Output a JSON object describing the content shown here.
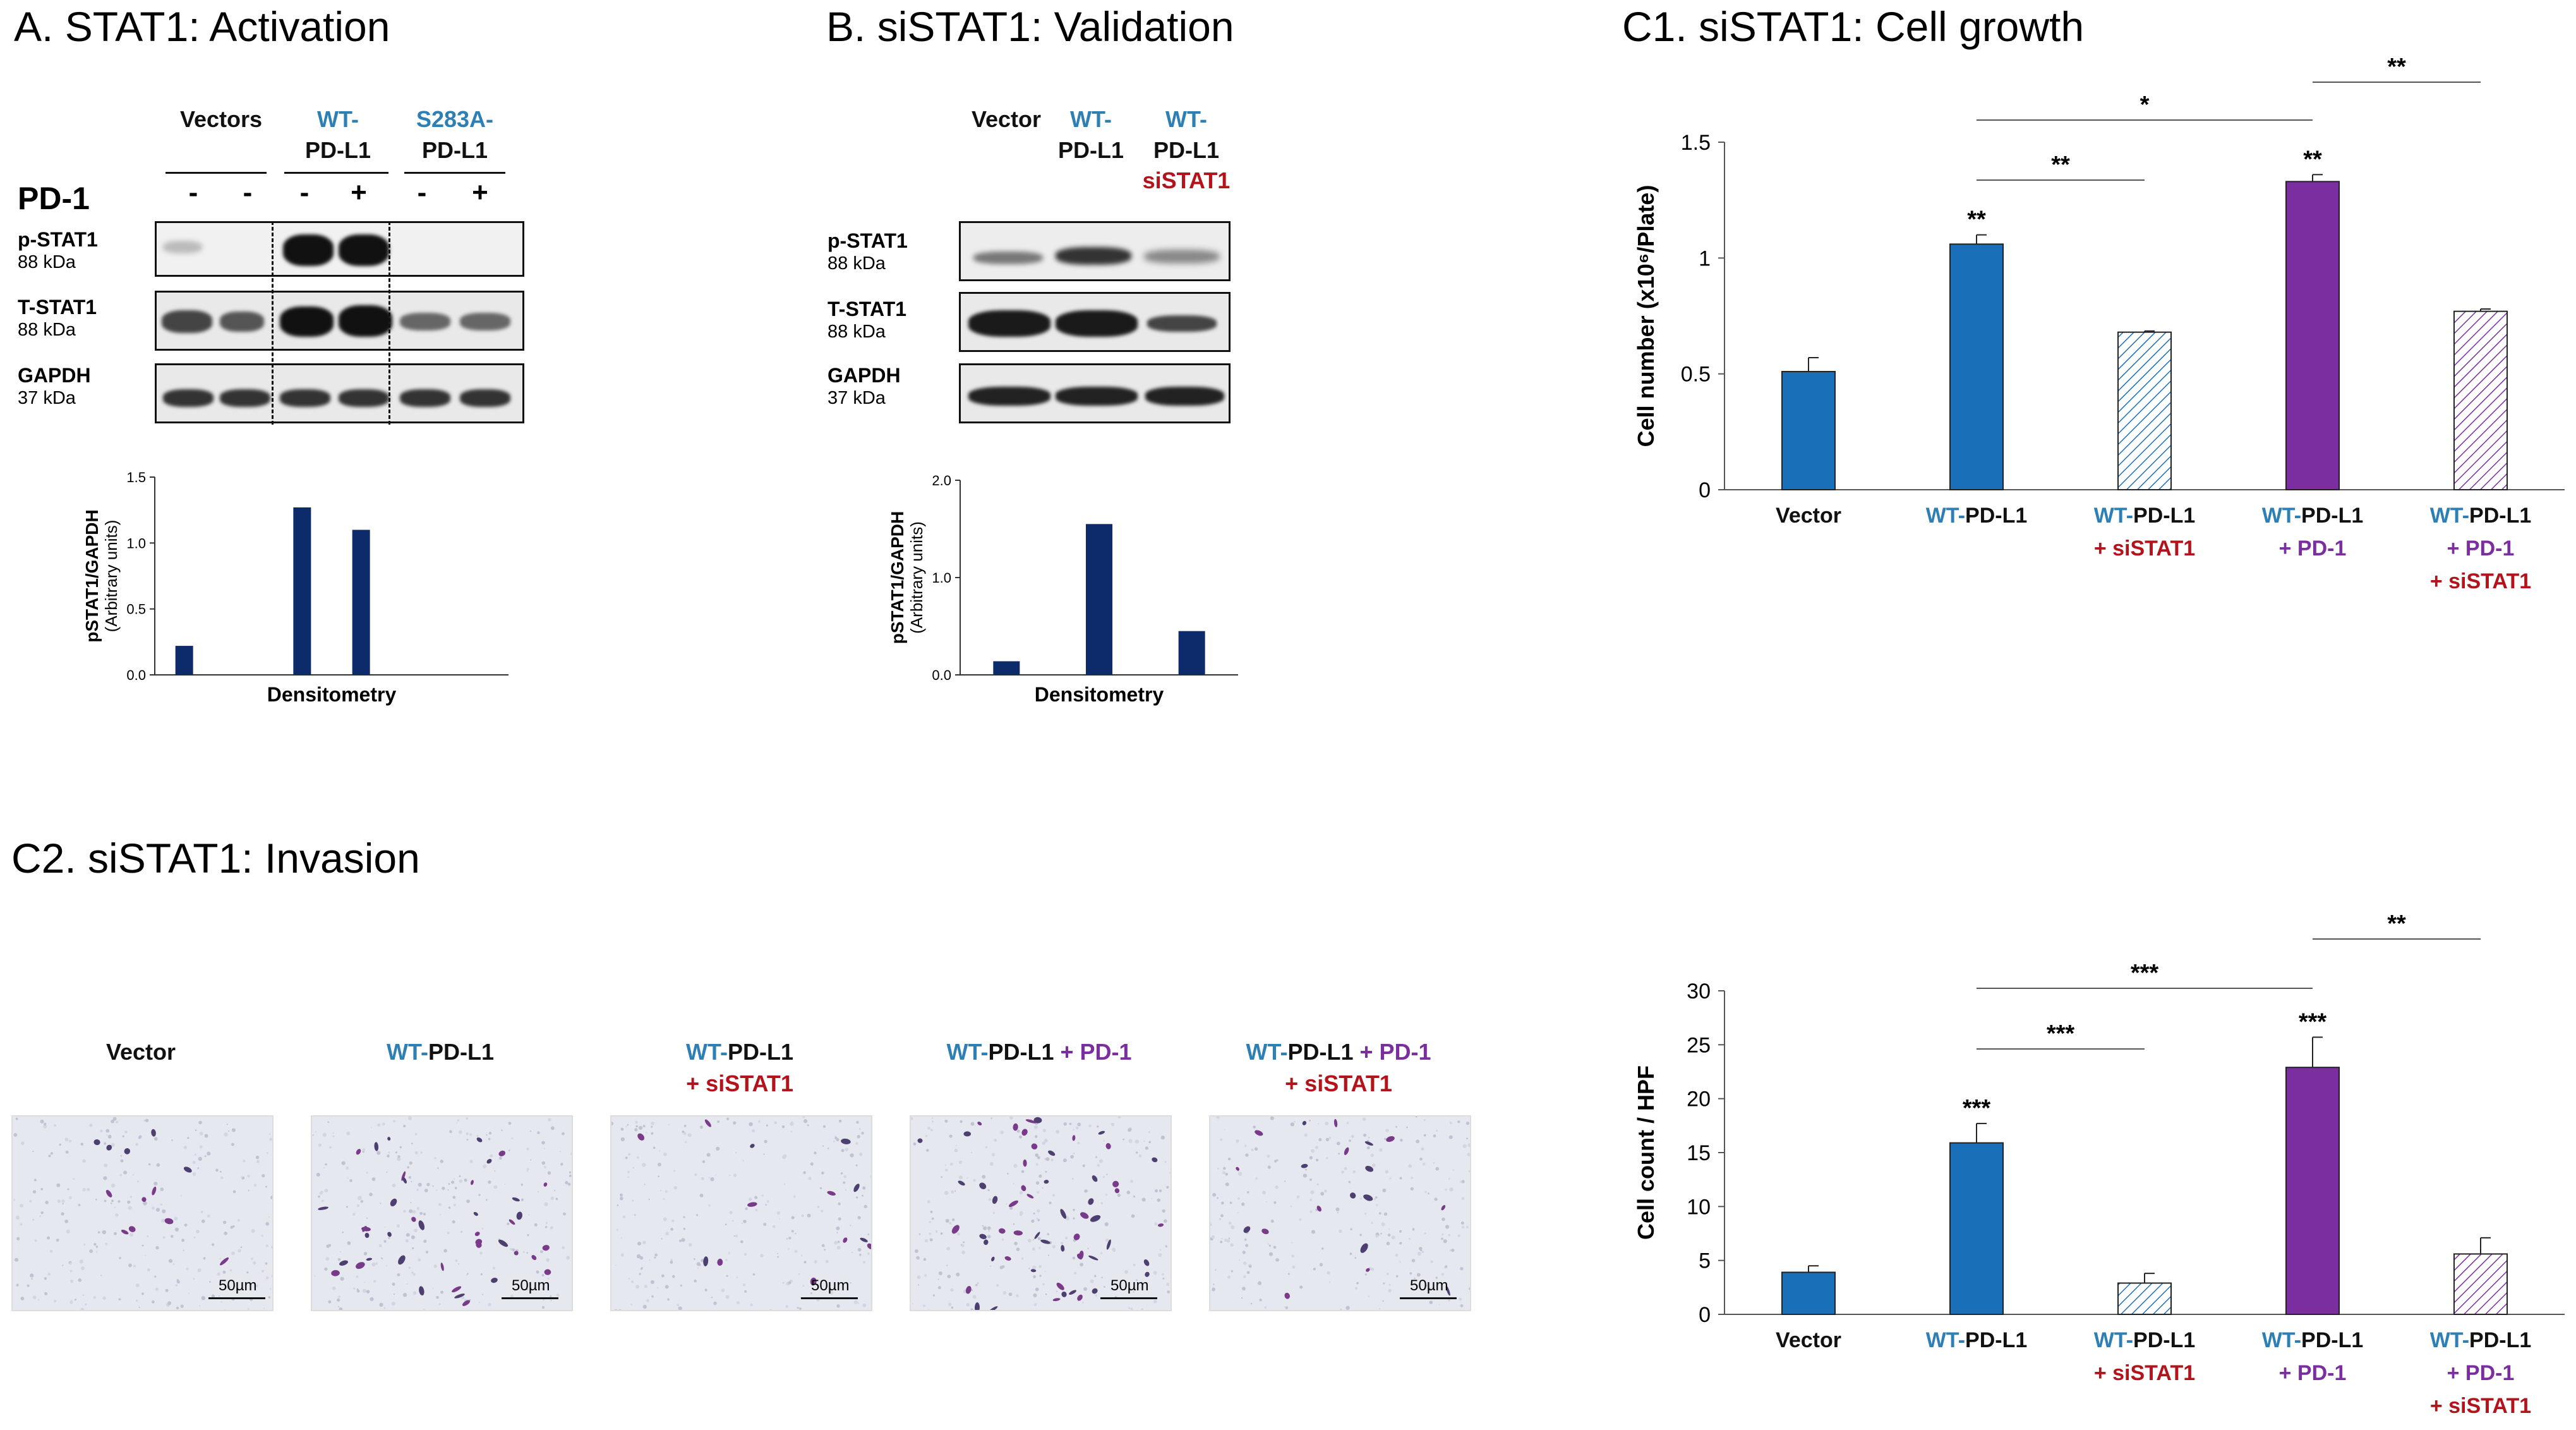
{
  "panels": {
    "a": {
      "title": "A. STAT1: Activation",
      "lane_headers": [
        {
          "line1": "Vectors",
          "line2": ""
        },
        {
          "line1": "WT-",
          "line2": "PD-L1"
        },
        {
          "line1": "S283A-",
          "line2": "PD-L1"
        }
      ],
      "pd1_label": "PD-1",
      "pd1_signs": [
        "-",
        "-",
        "-",
        "+",
        "-",
        "+"
      ],
      "rows": [
        {
          "name": "p-STAT1",
          "kda": "88 kDa"
        },
        {
          "name": "T-STAT1",
          "kda": "88 kDa"
        },
        {
          "name": "GAPDH",
          "kda": "37 kDa"
        }
      ]
    },
    "b": {
      "title": "B. siSTAT1: Validation",
      "lane_headers": [
        {
          "line1": "Vector",
          "line2": "",
          "line3": ""
        },
        {
          "line1": "WT-",
          "line2": "PD-L1",
          "line3": ""
        },
        {
          "line1": "WT-",
          "line2": "PD-L1",
          "line3": "siSTAT1"
        }
      ],
      "rows": [
        {
          "name": "p-STAT1",
          "kda": "88 kDa"
        },
        {
          "name": "T-STAT1",
          "kda": "88 kDa"
        },
        {
          "name": "GAPDH",
          "kda": "37 kDa"
        }
      ]
    },
    "c1": {
      "title": "C1. siSTAT1: Cell growth"
    },
    "c2": {
      "title": "C2. siSTAT1: Invasion",
      "images": [
        {
          "part1": "Vector",
          "part2": "",
          "part3": ""
        },
        {
          "part1": "WT-",
          "part2": "PD-L1",
          "part3": ""
        },
        {
          "part1": "WT-",
          "part2": "PD-L1",
          "part3": "+ siSTAT1"
        },
        {
          "part1": "WT-",
          "part2": "PD-L1",
          "part3": "+ PD-1"
        },
        {
          "part1": "WT-",
          "part2": "PD-L1",
          "part3": "+ PD-1",
          "part4": "+ siSTAT1"
        }
      ],
      "scale_label": "50µm"
    }
  },
  "colors": {
    "blue": "#1a70b8",
    "purple": "#7a2ea0",
    "navy": "#0d2a6b",
    "red": "#b3131b",
    "label_blue": "#2e7fb3"
  },
  "chart_data": [
    {
      "id": "a-densitometry",
      "type": "bar",
      "categories": [
        "Vector",
        "Vector + PD-1",
        "WT-PD-L1",
        "WT-PD-L1 + PD-1",
        "S283A-PD-L1",
        "S283A-PD-L1 + PD-1"
      ],
      "values": [
        0.22,
        0,
        1.27,
        1.1,
        0,
        0
      ],
      "xlabel": "Densitometry",
      "ylabel": "pSTAT1/GAPDH",
      "ylabel2": "(Arbitrary units)",
      "yticks": [
        "0.0",
        "0.5",
        "1.0",
        "1.5"
      ],
      "ylim": [
        0,
        1.5
      ]
    },
    {
      "id": "b-densitometry",
      "type": "bar",
      "categories": [
        "Vector",
        "WT-PD-L1",
        "WT-PD-L1 siSTAT1"
      ],
      "values": [
        0.14,
        1.55,
        0.45
      ],
      "xlabel": "Densitometry",
      "ylabel": "pSTAT1/GAPDH",
      "ylabel2": "(Arbitrary units)",
      "yticks": [
        "0.0",
        "1.0",
        "2.0"
      ],
      "ylim": [
        0,
        2.0
      ]
    },
    {
      "id": "c1-growth",
      "type": "bar",
      "ylabel": "Cell number (x10⁶/Plate)",
      "yticks": [
        "0",
        "0.5",
        "1",
        "1.5"
      ],
      "ylim": [
        0,
        1.5
      ],
      "groups": [
        {
          "label_parts": [
            [
              "Vector",
              "dark"
            ]
          ],
          "value": 0.51,
          "error": 0.06,
          "fill": "blue",
          "hatched": false,
          "sig": ""
        },
        {
          "label_parts": [
            [
              "WT-",
              "blue"
            ],
            [
              "PD-L1",
              "dark"
            ]
          ],
          "value": 1.06,
          "error": 0.04,
          "fill": "blue",
          "hatched": false,
          "sig": "**"
        },
        {
          "label_parts": [
            [
              "WT-",
              "blue"
            ],
            [
              "PD-L1",
              "dark"
            ],
            [
              "+ siSTAT1",
              "red"
            ]
          ],
          "value": 0.68,
          "error": 0.005,
          "fill": "blue",
          "hatched": true,
          "sig": ""
        },
        {
          "label_parts": [
            [
              "WT-",
              "blue"
            ],
            [
              "PD-L1",
              "dark"
            ],
            [
              "+ PD-1",
              "purple"
            ]
          ],
          "value": 1.33,
          "error": 0.03,
          "fill": "purple",
          "hatched": false,
          "sig": "**"
        },
        {
          "label_parts": [
            [
              "WT-",
              "blue"
            ],
            [
              "PD-L1",
              "dark"
            ],
            [
              "+ PD-1",
              "purple"
            ],
            [
              "+ siSTAT1",
              "red"
            ]
          ],
          "value": 0.77,
          "error": 0.01,
          "fill": "purple",
          "hatched": true,
          "sig": ""
        }
      ],
      "brackets": [
        {
          "from": 1,
          "to": 2,
          "label": "**",
          "level": 1
        },
        {
          "from": 1,
          "to": 3,
          "label": "*",
          "level": 3
        },
        {
          "from": 3,
          "to": 4,
          "label": "**",
          "level": 2
        }
      ]
    },
    {
      "id": "c2-invasion",
      "type": "bar",
      "ylabel": "Cell count / HPF",
      "yticks": [
        "0",
        "5",
        "10",
        "15",
        "20",
        "25",
        "30"
      ],
      "ylim": [
        0,
        30
      ],
      "groups": [
        {
          "label_parts": [
            [
              "Vector",
              "dark"
            ]
          ],
          "value": 3.9,
          "error": 0.6,
          "fill": "blue",
          "hatched": false,
          "sig": ""
        },
        {
          "label_parts": [
            [
              "WT-",
              "blue"
            ],
            [
              "PD-L1",
              "dark"
            ]
          ],
          "value": 15.9,
          "error": 1.8,
          "fill": "blue",
          "hatched": false,
          "sig": "***"
        },
        {
          "label_parts": [
            [
              "WT-",
              "blue"
            ],
            [
              "PD-L1",
              "dark"
            ],
            [
              "+ siSTAT1",
              "red"
            ]
          ],
          "value": 2.9,
          "error": 0.9,
          "fill": "blue",
          "hatched": true,
          "sig": ""
        },
        {
          "label_parts": [
            [
              "WT-",
              "blue"
            ],
            [
              "PD-L1",
              "dark"
            ],
            [
              "+ PD-1",
              "purple"
            ]
          ],
          "value": 22.9,
          "error": 2.8,
          "fill": "purple",
          "hatched": false,
          "sig": "***"
        },
        {
          "label_parts": [
            [
              "WT-",
              "blue"
            ],
            [
              "PD-L1",
              "dark"
            ],
            [
              "+ PD-1",
              "purple"
            ],
            [
              "+ siSTAT1",
              "red"
            ]
          ],
          "value": 5.6,
          "error": 1.5,
          "fill": "purple",
          "hatched": true,
          "sig": ""
        }
      ],
      "brackets": [
        {
          "from": 1,
          "to": 2,
          "label": "***",
          "level": 1
        },
        {
          "from": 1,
          "to": 3,
          "label": "***",
          "level": 3
        },
        {
          "from": 3,
          "to": 4,
          "label": "**",
          "level": 2
        }
      ]
    }
  ]
}
